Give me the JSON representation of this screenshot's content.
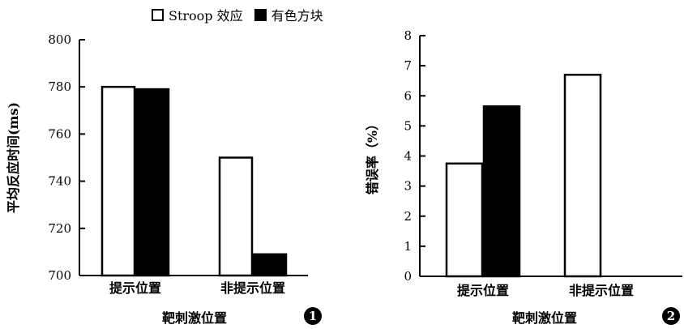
{
  "legend": {
    "stroop": "Stroop 效应",
    "color": "有色方块"
  },
  "chart_data": [
    {
      "type": "bar",
      "categories": [
        "提示位置",
        "非提示位置"
      ],
      "series": [
        {
          "name": "Stroop 效应",
          "values": [
            780,
            750
          ],
          "color": "#ffffff"
        },
        {
          "name": "有色方块",
          "values": [
            779,
            709
          ],
          "color": "#000000"
        }
      ],
      "ylim": [
        700,
        800
      ],
      "yticks": [
        700,
        720,
        740,
        760,
        780,
        800
      ],
      "ylabel": "平均反应时间(ms)",
      "xlabel": "靶刺激位置",
      "panel_number": "1",
      "grid": false,
      "legend_placement": "top"
    },
    {
      "type": "bar",
      "categories": [
        "提示位置",
        "非提示位置"
      ],
      "series": [
        {
          "name": "Stroop 效应",
          "values": [
            3.75,
            6.7
          ],
          "color": "#ffffff"
        },
        {
          "name": "有色方块",
          "values": [
            5.65,
            null
          ],
          "color": "#000000"
        }
      ],
      "ylim": [
        0,
        8
      ],
      "yticks": [
        0,
        1,
        2,
        3,
        4,
        5,
        6,
        7,
        8
      ],
      "ylabel": "错误率（%）",
      "xlabel": "靶刺激位置",
      "panel_number": "2",
      "grid": false,
      "legend_placement": "top"
    }
  ]
}
